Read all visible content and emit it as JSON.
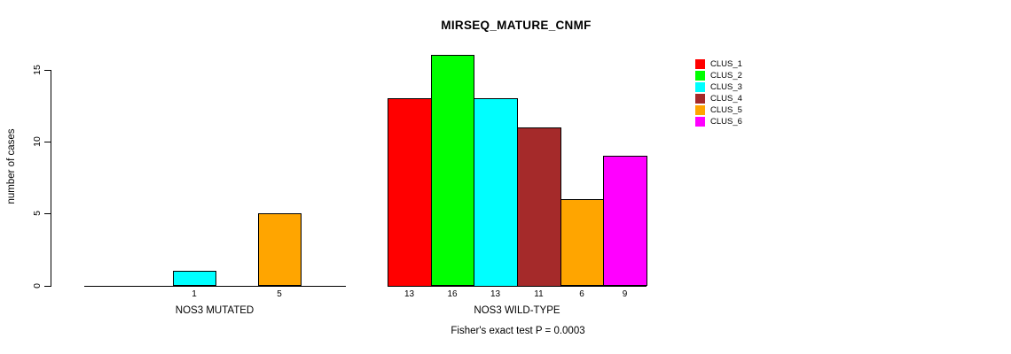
{
  "title": "MIRSEQ_MATURE_CNMF",
  "chart_data": {
    "type": "bar",
    "title": "MIRSEQ_MATURE_CNMF",
    "ylabel": "number of cases",
    "ylim": [
      0,
      15
    ],
    "yticks": [
      0,
      5,
      10,
      15
    ],
    "grid": false,
    "legend_position": "right",
    "legend": [
      {
        "name": "CLUS_1",
        "color": "#FF0000"
      },
      {
        "name": "CLUS_2",
        "color": "#00FF00"
      },
      {
        "name": "CLUS_3",
        "color": "#00FFFF"
      },
      {
        "name": "CLUS_4",
        "color": "#A52A2A"
      },
      {
        "name": "CLUS_5",
        "color": "#FFA500"
      },
      {
        "name": "CLUS_6",
        "color": "#FF00FF"
      }
    ],
    "groups": [
      {
        "label": "NOS3 MUTATED",
        "values": [
          0,
          0,
          1,
          0,
          5,
          0
        ]
      },
      {
        "label": "NOS3 WILD-TYPE",
        "values": [
          13,
          16,
          13,
          11,
          6,
          9
        ]
      }
    ],
    "annotation": "Fisher's exact test P = 0.0003"
  }
}
